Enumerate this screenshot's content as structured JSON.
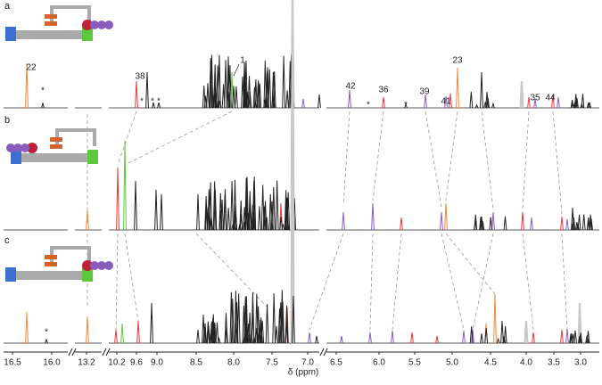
{
  "panels": [
    {
      "label": "a",
      "peaks": [
        "22",
        "*",
        "38",
        "*",
        "*",
        "*",
        "1",
        "42",
        "*",
        "36",
        "*",
        "39",
        "41",
        "23",
        "*",
        "35",
        "44"
      ]
    },
    {
      "label": "b",
      "peaks": []
    },
    {
      "label": "c",
      "peaks": [
        "*"
      ]
    }
  ],
  "axis": {
    "label": "δ (ppm)",
    "ticks": [
      "16.5",
      "16.0",
      "13.2",
      "10.2",
      "9.6",
      "9.0",
      "8.5",
      "8.0",
      "7.5",
      "7.0",
      "6.5",
      "6.0",
      "5.5",
      "5.0",
      "4.5",
      "4.0",
      "3.5",
      "3.0"
    ]
  }
}
